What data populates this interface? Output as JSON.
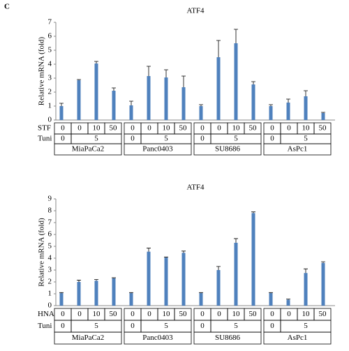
{
  "panel_label": "C",
  "chart_data": [
    {
      "type": "bar",
      "title": "ATF4",
      "y_label": "Relative  mRNA  (fold)",
      "ylim": [
        0,
        7
      ],
      "yticks": [
        0,
        1,
        2,
        3,
        4,
        5,
        6,
        7
      ],
      "color": "#4f81bd",
      "values": [
        1.0,
        2.85,
        4.05,
        2.1,
        1.05,
        3.15,
        3.05,
        2.35,
        1.0,
        4.5,
        5.5,
        2.55,
        1.0,
        1.25,
        1.7,
        0.5
      ],
      "errors": [
        0.2,
        0.05,
        0.15,
        0.2,
        0.3,
        0.7,
        0.55,
        0.8,
        0.1,
        1.2,
        1.0,
        0.2,
        0.1,
        0.25,
        0.4,
        0.05
      ],
      "row_labels": [
        "STF",
        "Tuni"
      ],
      "groups": [
        {
          "name": "MiaPaCa2",
          "drug": [
            0,
            0,
            10,
            50
          ],
          "tuni": [
            0,
            5
          ]
        },
        {
          "name": "Panc0403",
          "drug": [
            0,
            0,
            10,
            50
          ],
          "tuni": [
            0,
            5
          ]
        },
        {
          "name": "SU8686",
          "drug": [
            0,
            0,
            10,
            50
          ],
          "tuni": [
            0,
            5
          ]
        },
        {
          "name": "AsPc1",
          "drug": [
            0,
            0,
            10,
            50
          ],
          "tuni": [
            0,
            5
          ]
        }
      ]
    },
    {
      "type": "bar",
      "title": "ATF4",
      "y_label": "Relative  mRNA  (fold)",
      "ylim": [
        0,
        9
      ],
      "yticks": [
        0,
        1,
        2,
        3,
        4,
        5,
        6,
        7,
        8,
        9
      ],
      "color": "#4f81bd",
      "values": [
        1.05,
        2.0,
        2.1,
        2.3,
        1.05,
        4.55,
        4.05,
        4.45,
        1.05,
        3.0,
        5.3,
        7.8,
        1.05,
        0.5,
        2.75,
        3.6
      ],
      "errors": [
        0.05,
        0.15,
        0.1,
        0.05,
        0.05,
        0.3,
        0.05,
        0.15,
        0.05,
        0.3,
        0.35,
        0.1,
        0.05,
        0.05,
        0.35,
        0.1
      ],
      "row_labels": [
        "HNA",
        "Tuni"
      ],
      "groups": [
        {
          "name": "MiaPaCa2",
          "drug": [
            0,
            0,
            10,
            50
          ],
          "tuni": [
            0,
            5
          ]
        },
        {
          "name": "Panc0403",
          "drug": [
            0,
            0,
            10,
            50
          ],
          "tuni": [
            0,
            5
          ]
        },
        {
          "name": "SU8686",
          "drug": [
            0,
            0,
            10,
            50
          ],
          "tuni": [
            0,
            5
          ]
        },
        {
          "name": "AsPc1",
          "drug": [
            0,
            0,
            10,
            50
          ],
          "tuni": [
            0,
            5
          ]
        }
      ]
    }
  ]
}
